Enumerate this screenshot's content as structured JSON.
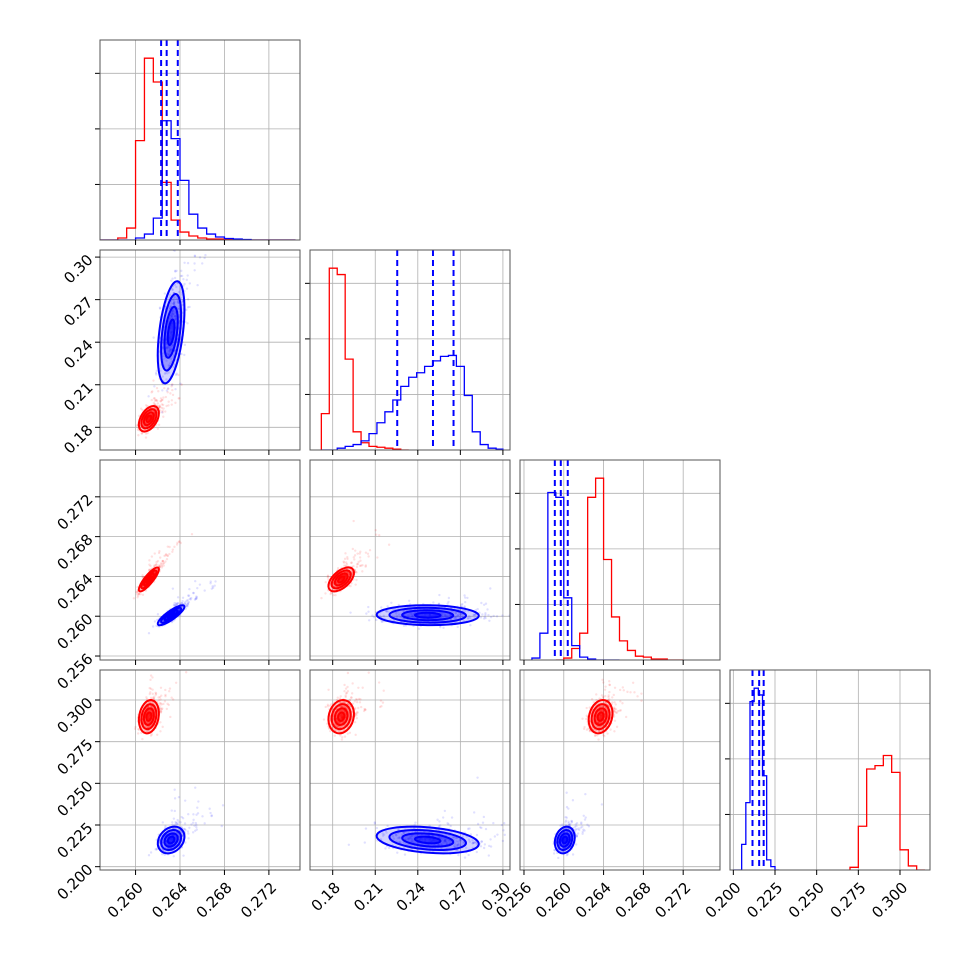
{
  "chart_data": {
    "type": "corner",
    "grid": true,
    "params": [
      {
        "ticks": [
          0.26,
          0.264,
          0.268,
          0.272
        ],
        "tick_labels": [
          "0.260",
          "0.264",
          "0.268",
          "0.272"
        ],
        "range": [
          0.2568,
          0.2748
        ]
      },
      {
        "ticks": [
          0.18,
          0.21,
          0.24,
          0.27,
          0.3
        ],
        "tick_labels": [
          "0.18",
          "0.21",
          "0.24",
          "0.27",
          "0.30"
        ],
        "range": [
          0.164,
          0.305
        ]
      },
      {
        "ticks": [
          0.256,
          0.26,
          0.264,
          0.268,
          0.272
        ],
        "tick_labels": [
          "0.256",
          "0.260",
          "0.264",
          "0.268",
          "0.272"
        ],
        "range": [
          0.2556,
          0.2757
        ]
      },
      {
        "ticks": [
          0.2,
          0.225,
          0.25,
          0.275,
          0.3
        ],
        "tick_labels": [
          "0.200",
          "0.225",
          "0.250",
          "0.275",
          "0.300"
        ],
        "range": [
          0.198,
          0.318
        ]
      }
    ],
    "series": [
      {
        "color": "#ff0000",
        "mean": [
          0.2612,
          0.186,
          0.2637,
          0.29
        ],
        "std": [
          0.00045,
          0.0045,
          0.0006,
          0.005
        ],
        "histograms": [
          {
            "bins": [
              0.2568,
              0.2576,
              0.2584,
              0.2592,
              0.26,
              0.2608,
              0.2616,
              0.2624,
              0.2632,
              0.264,
              0.2648,
              0.2656,
              0.2664,
              0.2672,
              0.268,
              0.2688,
              0.2696,
              0.2704,
              0.2712,
              0.272,
              0.2728,
              0.2736,
              0.2744
            ],
            "counts": [
              0,
              0,
              2,
              12,
              100,
              183,
              159,
              58,
              20,
              8,
              4,
              2,
              1,
              1,
              0.5,
              0,
              0,
              0,
              0,
              0,
              0,
              0
            ]
          },
          {
            "bins": [
              0.172,
              0.1776,
              0.1832,
              0.1888,
              0.1944,
              0.2,
              0.2056,
              0.2112,
              0.2168,
              0.2224,
              0.228,
              0.2336
            ],
            "counts": [
              40,
              200,
              193,
              100,
              20,
              8,
              4,
              3,
              2,
              1,
              0
            ]
          },
          {
            "bins": [
              0.2592,
              0.26,
              0.2608,
              0.2616,
              0.2624,
              0.2632,
              0.264,
              0.2648,
              0.2656,
              0.2664,
              0.2672,
              0.268,
              0.2688,
              0.2696,
              0.2704,
              0.2712,
              0.272
            ],
            "counts": [
              0,
              2,
              12,
              28,
              170,
              190,
              105,
              45,
              20,
              10,
              4,
              3,
              1,
              1,
              0,
              0
            ]
          },
          {
            "bins": [
              0.27,
              0.275,
              0.28,
              0.285,
              0.29,
              0.295,
              0.3,
              0.305,
              0.31,
              0.315
            ],
            "counts": [
              4,
              65,
              150,
              155,
              170,
              145,
              30,
              6,
              0
            ]
          }
        ]
      },
      {
        "color": "#0000ff",
        "mean": [
          0.2632,
          0.247,
          0.2601,
          0.216
        ],
        "std": [
          0.0006,
          0.018,
          0.0005,
          0.004
        ],
        "quantiles": [
          [
            0.2623,
            0.2628,
            0.2638
          ],
          [
            0.2255,
            0.2507,
            0.2652
          ],
          [
            0.2591,
            0.2597,
            0.2604
          ],
          [
            0.2115,
            0.2155,
            0.2182
          ]
        ],
        "histograms": [
          {
            "bins": [
              0.2568,
              0.2576,
              0.2584,
              0.2592,
              0.26,
              0.2608,
              0.2616,
              0.2624,
              0.2632,
              0.264,
              0.2648,
              0.2656,
              0.2664,
              0.2672,
              0.268,
              0.2688,
              0.2696,
              0.2704,
              0.2712,
              0.272,
              0.2728,
              0.2736,
              0.2744
            ],
            "counts": [
              0,
              0,
              0,
              0,
              2,
              6,
              22,
              120,
              102,
              60,
              26,
              12,
              6,
              3,
              1.5,
              1,
              0.5,
              0,
              0,
              0,
              0,
              0
            ]
          },
          {
            "bins": [
              0.172,
              0.1776,
              0.1832,
              0.1888,
              0.1944,
              0.2,
              0.2056,
              0.2112,
              0.2168,
              0.2224,
              0.228,
              0.2336,
              0.2392,
              0.2448,
              0.2504,
              0.256,
              0.2616,
              0.2672,
              0.2728,
              0.2784,
              0.284,
              0.2896,
              0.2952,
              0.3
            ],
            "counts": [
              0,
              0,
              2,
              4,
              6,
              10,
              18,
              30,
              42,
              55,
              70,
              80,
              85,
              92,
              98,
              103,
              104,
              92,
              60,
              20,
              6,
              2,
              1
            ]
          },
          {
            "bins": [
              0.2568,
              0.2576,
              0.2584,
              0.2592,
              0.26,
              0.2608,
              0.2616,
              0.2624,
              0.2632,
              0.264,
              0.2648,
              0.2656
            ],
            "counts": [
              2,
              28,
              175,
              170,
              65,
              15,
              3,
              1,
              0,
              0,
              0
            ]
          },
          {
            "bins": [
              0.2,
              0.2025,
              0.205,
              0.2075,
              0.21,
              0.2125,
              0.215,
              0.2175,
              0.22,
              0.2225,
              0.225,
              0.2275
            ],
            "counts": [
              0,
              0,
              38,
              100,
              250,
              270,
              260,
              140,
              15,
              5,
              0
            ]
          }
        ]
      }
    ]
  }
}
